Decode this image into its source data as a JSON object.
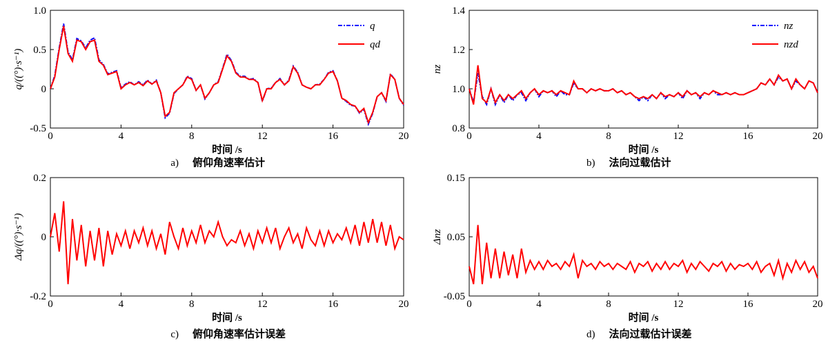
{
  "chart_data": [
    {
      "type": "line",
      "caption_label": "a)",
      "caption": "俯仰角速率估计",
      "xlabel": "时间 /s",
      "ylabel": "q/((°)·s⁻¹)",
      "legend": "upper right",
      "x": [
        0,
        0.25,
        0.5,
        0.75,
        1,
        1.25,
        1.5,
        1.75,
        2,
        2.25,
        2.5,
        2.75,
        3,
        3.25,
        3.5,
        3.75,
        4,
        4.25,
        4.5,
        4.75,
        5,
        5.25,
        5.5,
        5.75,
        6,
        6.25,
        6.5,
        6.75,
        7,
        7.25,
        7.5,
        7.75,
        8,
        8.25,
        8.5,
        8.75,
        9,
        9.25,
        9.5,
        9.75,
        10,
        10.25,
        10.5,
        10.75,
        11,
        11.25,
        11.5,
        11.75,
        12,
        12.25,
        12.5,
        12.75,
        13,
        13.25,
        13.5,
        13.75,
        14,
        14.25,
        14.5,
        14.75,
        15,
        15.25,
        15.5,
        15.75,
        16,
        16.25,
        16.5,
        16.75,
        17,
        17.25,
        17.5,
        17.75,
        18,
        18.25,
        18.5,
        18.75,
        19,
        19.25,
        19.5,
        19.75,
        20
      ],
      "series": [
        {
          "name": "q",
          "color": "#0000ff",
          "dash": true,
          "values": [
            0,
            0.17,
            0.52,
            0.83,
            0.47,
            0.37,
            0.64,
            0.61,
            0.52,
            0.62,
            0.65,
            0.37,
            0.31,
            0.19,
            0.21,
            0.23,
            0.01,
            0.06,
            0.09,
            0.05,
            0.09,
            0.05,
            0.11,
            0.06,
            0.11,
            -0.05,
            -0.37,
            -0.31,
            -0.06,
            0,
            0.05,
            0.16,
            0.13,
            -0.02,
            0.05,
            -0.13,
            -0.05,
            0.05,
            0.09,
            0.26,
            0.44,
            0.36,
            0.21,
            0.16,
            0.16,
            0.12,
            0.13,
            0.08,
            -0.16,
            0,
            0.01,
            0.08,
            0.13,
            0.05,
            0.11,
            0.29,
            0.21,
            0.05,
            0.02,
            0,
            0.05,
            0.06,
            0.12,
            0.21,
            0.23,
            0.1,
            -0.12,
            -0.16,
            -0.21,
            -0.22,
            -0.31,
            -0.26,
            -0.45,
            -0.31,
            -0.1,
            -0.05,
            -0.16,
            0.19,
            0.12,
            -0.12,
            -0.21
          ]
        },
        {
          "name": "qd",
          "color": "#ff0000",
          "dash": false,
          "values": [
            0,
            0.15,
            0.5,
            0.8,
            0.45,
            0.35,
            0.62,
            0.6,
            0.5,
            0.6,
            0.62,
            0.35,
            0.3,
            0.18,
            0.2,
            0.22,
            0,
            0.05,
            0.08,
            0.05,
            0.08,
            0.04,
            0.1,
            0.06,
            0.1,
            -0.05,
            -0.35,
            -0.3,
            -0.05,
            0,
            0.05,
            0.15,
            0.12,
            -0.02,
            0.05,
            -0.12,
            -0.05,
            0.05,
            0.08,
            0.25,
            0.42,
            0.35,
            0.2,
            0.15,
            0.15,
            0.12,
            0.12,
            0.08,
            -0.15,
            0,
            0,
            0.08,
            0.12,
            0.05,
            0.1,
            0.28,
            0.2,
            0.05,
            0.02,
            0,
            0.05,
            0.05,
            0.12,
            0.2,
            0.22,
            0.1,
            -0.12,
            -0.15,
            -0.2,
            -0.22,
            -0.3,
            -0.25,
            -0.43,
            -0.3,
            -0.1,
            -0.05,
            -0.15,
            0.18,
            0.12,
            -0.12,
            -0.2
          ]
        }
      ],
      "xlim": [
        0,
        20
      ],
      "xticks": [
        0,
        4,
        8,
        12,
        16,
        20
      ],
      "ylim": [
        -0.5,
        1
      ],
      "yticks": [
        -0.5,
        0,
        0.5,
        {
          "value": 1,
          "label": "1.0"
        }
      ]
    },
    {
      "type": "line",
      "caption_label": "b)",
      "caption": "法向过载估计",
      "xlabel": "时间 /s",
      "ylabel": "nz",
      "legend": "upper right",
      "x": [
        0,
        0.25,
        0.5,
        0.75,
        1,
        1.25,
        1.5,
        1.75,
        2,
        2.25,
        2.5,
        2.75,
        3,
        3.25,
        3.5,
        3.75,
        4,
        4.25,
        4.5,
        4.75,
        5,
        5.25,
        5.5,
        5.75,
        6,
        6.25,
        6.5,
        6.75,
        7,
        7.25,
        7.5,
        7.75,
        8,
        8.25,
        8.5,
        8.75,
        9,
        9.25,
        9.5,
        9.75,
        10,
        10.25,
        10.5,
        10.75,
        11,
        11.25,
        11.5,
        11.75,
        12,
        12.25,
        12.5,
        12.75,
        13,
        13.25,
        13.5,
        13.75,
        14,
        14.25,
        14.5,
        14.75,
        15,
        15.25,
        15.5,
        15.75,
        16,
        16.25,
        16.5,
        16.75,
        17,
        17.25,
        17.5,
        17.75,
        18,
        18.25,
        18.5,
        18.75,
        19,
        19.25,
        19.5,
        19.75,
        20
      ],
      "series": [
        {
          "name": "nz",
          "color": "#0000ff",
          "dash": true,
          "values": [
            1,
            0.93,
            1.08,
            0.96,
            0.92,
            1,
            0.92,
            0.97,
            0.93,
            0.97,
            0.94,
            0.97,
            0.98,
            0.94,
            0.98,
            1,
            0.96,
            0.99,
            0.98,
            0.99,
            0.96,
            0.99,
            0.97,
            0.97,
            1.03,
            1,
            1,
            0.98,
            1,
            0.99,
            1,
            0.99,
            0.99,
            1,
            0.98,
            0.99,
            0.97,
            0.98,
            0.96,
            0.94,
            0.96,
            0.94,
            0.97,
            0.95,
            0.98,
            0.95,
            0.97,
            0.96,
            0.98,
            0.95,
            0.99,
            0.97,
            0.98,
            0.95,
            0.98,
            0.97,
            0.99,
            0.97,
            0.97,
            0.98,
            0.97,
            0.98,
            0.97,
            0.97,
            0.98,
            0.99,
            1,
            1.03,
            1.02,
            1.05,
            1.02,
            1.06,
            1.04,
            1.05,
            1,
            1.04,
            1.02,
            1,
            1.04,
            1.03,
            0.98
          ]
        },
        {
          "name": "nzd",
          "color": "#ff0000",
          "dash": false,
          "values": [
            1,
            0.92,
            1.12,
            0.95,
            0.93,
            1,
            0.93,
            0.97,
            0.94,
            0.97,
            0.95,
            0.97,
            0.99,
            0.95,
            0.98,
            1,
            0.97,
            0.99,
            0.98,
            0.99,
            0.97,
            0.99,
            0.98,
            0.97,
            1.04,
            1,
            1,
            0.98,
            1,
            0.99,
            1,
            0.99,
            0.99,
            1,
            0.98,
            0.99,
            0.97,
            0.98,
            0.96,
            0.95,
            0.96,
            0.95,
            0.97,
            0.95,
            0.98,
            0.96,
            0.97,
            0.96,
            0.98,
            0.96,
            0.99,
            0.97,
            0.98,
            0.96,
            0.98,
            0.97,
            0.99,
            0.98,
            0.97,
            0.98,
            0.97,
            0.98,
            0.97,
            0.97,
            0.98,
            0.99,
            1,
            1.03,
            1.02,
            1.05,
            1.02,
            1.07,
            1.04,
            1.05,
            1,
            1.05,
            1.02,
            1,
            1.04,
            1.03,
            0.98
          ]
        }
      ],
      "xlim": [
        0,
        20
      ],
      "xticks": [
        0,
        4,
        8,
        12,
        16,
        20
      ],
      "ylim": [
        0.8,
        1.4
      ],
      "yticks": [
        0.8,
        {
          "value": 1,
          "label": "1.0"
        },
        1.2,
        1.4
      ]
    },
    {
      "type": "line",
      "caption_label": "c)",
      "caption": "俯仰角速率估计误差",
      "xlabel": "时间 /s",
      "ylabel": "Δq/((°)·s⁻¹)",
      "x": [
        0,
        0.25,
        0.5,
        0.75,
        1,
        1.25,
        1.5,
        1.75,
        2,
        2.25,
        2.5,
        2.75,
        3,
        3.25,
        3.5,
        3.75,
        4,
        4.25,
        4.5,
        4.75,
        5,
        5.25,
        5.5,
        5.75,
        6,
        6.25,
        6.5,
        6.75,
        7,
        7.25,
        7.5,
        7.75,
        8,
        8.25,
        8.5,
        8.75,
        9,
        9.25,
        9.5,
        9.75,
        10,
        10.25,
        10.5,
        10.75,
        11,
        11.25,
        11.5,
        11.75,
        12,
        12.25,
        12.5,
        12.75,
        13,
        13.25,
        13.5,
        13.75,
        14,
        14.25,
        14.5,
        14.75,
        15,
        15.25,
        15.5,
        15.75,
        16,
        16.25,
        16.5,
        16.75,
        17,
        17.25,
        17.5,
        17.75,
        18,
        18.25,
        18.5,
        18.75,
        19,
        19.25,
        19.5,
        19.75,
        20
      ],
      "series": [
        {
          "color": "#ff0000",
          "dash": false,
          "values": [
            0,
            0.08,
            -0.05,
            0.12,
            -0.16,
            0.06,
            -0.08,
            0.04,
            -0.1,
            0.02,
            -0.08,
            0.03,
            -0.1,
            0.02,
            -0.06,
            0.01,
            -0.03,
            0.02,
            -0.04,
            0.02,
            -0.02,
            0.03,
            -0.03,
            0.02,
            -0.04,
            0.01,
            -0.06,
            0.05,
            0,
            -0.04,
            0.03,
            -0.03,
            0.02,
            -0.02,
            0.04,
            -0.02,
            0.02,
            0,
            0.05,
            0,
            -0.03,
            -0.01,
            -0.02,
            0.02,
            -0.03,
            0.01,
            -0.04,
            0.02,
            -0.02,
            0.03,
            -0.02,
            0.03,
            -0.04,
            0,
            0.03,
            -0.02,
            0.01,
            -0.04,
            0.03,
            -0.01,
            -0.03,
            0.02,
            -0.03,
            0.02,
            -0.02,
            0.01,
            -0.01,
            0.03,
            -0.02,
            0.04,
            -0.03,
            0.05,
            -0.02,
            0.06,
            -0.02,
            0.05,
            -0.03,
            0.04,
            -0.04,
            0,
            -0.01
          ]
        }
      ],
      "xlim": [
        0,
        20
      ],
      "xticks": [
        0,
        4,
        8,
        12,
        16,
        20
      ],
      "ylim": [
        -0.2,
        0.2
      ],
      "yticks": [
        -0.2,
        0,
        0.2
      ]
    },
    {
      "type": "line",
      "caption_label": "d)",
      "caption": "法向过载估计误差",
      "xlabel": "时间 /s",
      "ylabel": "Δnz",
      "x": [
        0,
        0.25,
        0.5,
        0.75,
        1,
        1.25,
        1.5,
        1.75,
        2,
        2.25,
        2.5,
        2.75,
        3,
        3.25,
        3.5,
        3.75,
        4,
        4.25,
        4.5,
        4.75,
        5,
        5.25,
        5.5,
        5.75,
        6,
        6.25,
        6.5,
        6.75,
        7,
        7.25,
        7.5,
        7.75,
        8,
        8.25,
        8.5,
        8.75,
        9,
        9.25,
        9.5,
        9.75,
        10,
        10.25,
        10.5,
        10.75,
        11,
        11.25,
        11.5,
        11.75,
        12,
        12.25,
        12.5,
        12.75,
        13,
        13.25,
        13.5,
        13.75,
        14,
        14.25,
        14.5,
        14.75,
        15,
        15.25,
        15.5,
        15.75,
        16,
        16.25,
        16.5,
        16.75,
        17,
        17.25,
        17.5,
        17.75,
        18,
        18.25,
        18.5,
        18.75,
        19,
        19.25,
        19.5,
        19.75,
        20
      ],
      "series": [
        {
          "color": "#ff0000",
          "dash": false,
          "values": [
            0,
            -0.03,
            0.07,
            -0.03,
            0.04,
            -0.02,
            0.03,
            -0.02,
            0.025,
            -0.015,
            0.02,
            -0.02,
            0.03,
            -0.01,
            0.01,
            -0.005,
            0.008,
            -0.005,
            0.01,
            0,
            0.005,
            -0.005,
            0.008,
            0,
            0.02,
            -0.02,
            0.01,
            0,
            0.005,
            -0.005,
            0.008,
            0,
            0.005,
            -0.005,
            0.005,
            0,
            -0.005,
            0.008,
            -0.01,
            0.005,
            0,
            0.008,
            -0.008,
            0.005,
            -0.005,
            0.008,
            -0.005,
            0.005,
            0,
            0.01,
            -0.01,
            0.005,
            -0.005,
            0.008,
            0,
            -0.008,
            0.005,
            0,
            0.008,
            -0.008,
            0.005,
            -0.005,
            0.003,
            0,
            0.005,
            -0.005,
            0.008,
            -0.01,
            0,
            0.005,
            -0.015,
            0.01,
            -0.02,
            0.005,
            -0.01,
            0.01,
            -0.005,
            0.008,
            -0.01,
            0,
            -0.02
          ]
        }
      ],
      "xlim": [
        0,
        20
      ],
      "xticks": [
        0,
        4,
        8,
        12,
        16,
        20
      ],
      "ylim": [
        -0.05,
        0.15
      ],
      "yticks": [
        -0.05,
        0.05,
        0.15
      ]
    }
  ]
}
